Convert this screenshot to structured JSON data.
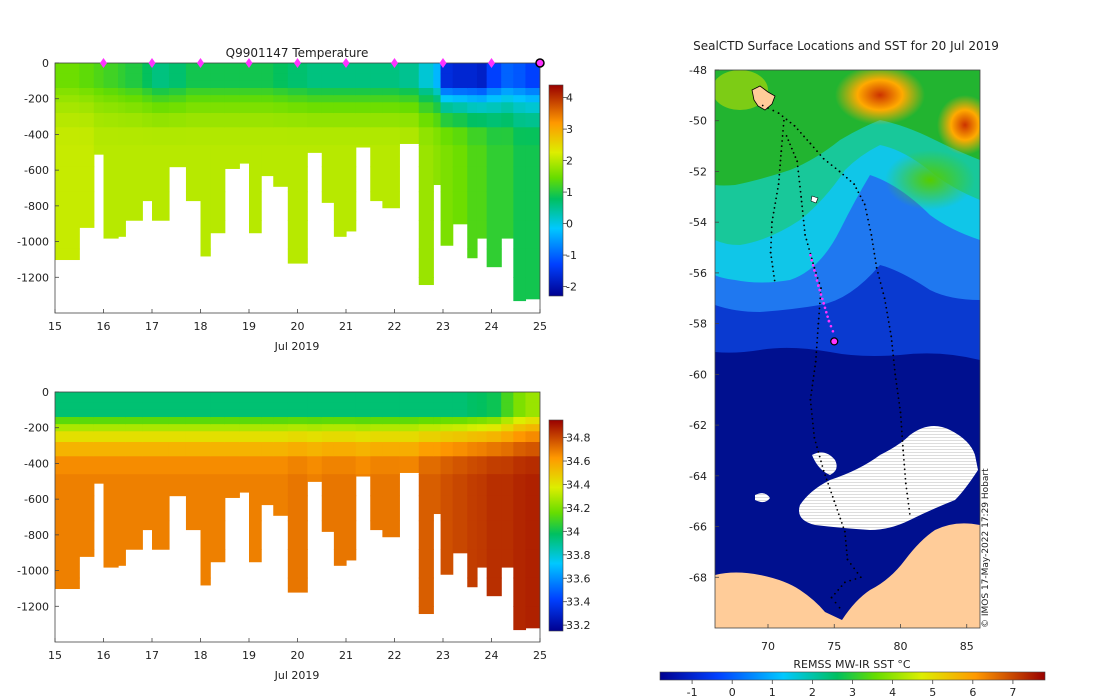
{
  "colors": {
    "seafloor_blank": "#ffffff",
    "land": "#ffcc99",
    "ice": "#ffffff",
    "profile_marker": "#ff33ff",
    "track": "#000000"
  },
  "chart_data": [
    {
      "type": "heatmap",
      "title": "Q9901147  Temperature",
      "xlabel": "Jul 2019",
      "ylabel": "",
      "x_ticks": [
        "15",
        "16",
        "17",
        "18",
        "19",
        "20",
        "21",
        "22",
        "23",
        "24",
        "25"
      ],
      "y_ticks": [
        "0",
        "-200",
        "-400",
        "-600",
        "-800",
        "-1000",
        "-1200"
      ],
      "xlim": [
        15,
        25
      ],
      "ylim": [
        -1400,
        0
      ],
      "grid": false,
      "colorbar": {
        "ticks": [
          "4",
          "3",
          "2",
          "1",
          "0",
          "-1",
          "-2"
        ],
        "range": [
          -2.3,
          4.4
        ]
      },
      "profile_marks": [
        16,
        17,
        18,
        19,
        20,
        21,
        22,
        23,
        24
      ],
      "latest_mark": 25,
      "profiles": [
        {
          "start": 15.0,
          "end": 15.5,
          "max_depth": 1100,
          "surface_temp": 1.5,
          "deep_temp": 2.1
        },
        {
          "start": 15.5,
          "end": 15.8,
          "max_depth": 920,
          "surface_temp": 1.4,
          "deep_temp": 2.1
        },
        {
          "start": 15.8,
          "end": 16.0,
          "max_depth": 510,
          "surface_temp": 1.3,
          "deep_temp": 2.0
        },
        {
          "start": 16.0,
          "end": 16.3,
          "max_depth": 980,
          "surface_temp": 1.2,
          "deep_temp": 2.0
        },
        {
          "start": 16.3,
          "end": 16.45,
          "max_depth": 970,
          "surface_temp": 1.1,
          "deep_temp": 2.0
        },
        {
          "start": 16.45,
          "end": 16.8,
          "max_depth": 880,
          "surface_temp": 1.0,
          "deep_temp": 2.0
        },
        {
          "start": 16.8,
          "end": 17.0,
          "max_depth": 770,
          "surface_temp": 0.8,
          "deep_temp": 2.0
        },
        {
          "start": 17.0,
          "end": 17.35,
          "max_depth": 880,
          "surface_temp": 0.6,
          "deep_temp": 2.0
        },
        {
          "start": 17.35,
          "end": 17.7,
          "max_depth": 580,
          "surface_temp": 0.7,
          "deep_temp": 2.0
        },
        {
          "start": 17.7,
          "end": 18.0,
          "max_depth": 770,
          "surface_temp": 0.9,
          "deep_temp": 2.0
        },
        {
          "start": 18.0,
          "end": 18.2,
          "max_depth": 1080,
          "surface_temp": 0.9,
          "deep_temp": 2.0
        },
        {
          "start": 18.2,
          "end": 18.5,
          "max_depth": 950,
          "surface_temp": 0.9,
          "deep_temp": 2.0
        },
        {
          "start": 18.5,
          "end": 18.8,
          "max_depth": 590,
          "surface_temp": 0.9,
          "deep_temp": 2.0
        },
        {
          "start": 18.8,
          "end": 19.0,
          "max_depth": 560,
          "surface_temp": 0.9,
          "deep_temp": 2.0
        },
        {
          "start": 19.0,
          "end": 19.25,
          "max_depth": 950,
          "surface_temp": 0.9,
          "deep_temp": 2.0
        },
        {
          "start": 19.25,
          "end": 19.5,
          "max_depth": 630,
          "surface_temp": 0.9,
          "deep_temp": 2.0
        },
        {
          "start": 19.5,
          "end": 19.8,
          "max_depth": 690,
          "surface_temp": 0.8,
          "deep_temp": 2.0
        },
        {
          "start": 19.8,
          "end": 20.2,
          "max_depth": 1120,
          "surface_temp": 0.7,
          "deep_temp": 2.0
        },
        {
          "start": 20.2,
          "end": 20.5,
          "max_depth": 500,
          "surface_temp": 0.6,
          "deep_temp": 2.0
        },
        {
          "start": 20.5,
          "end": 20.75,
          "max_depth": 780,
          "surface_temp": 0.6,
          "deep_temp": 2.0
        },
        {
          "start": 20.75,
          "end": 21.0,
          "max_depth": 970,
          "surface_temp": 0.6,
          "deep_temp": 2.0
        },
        {
          "start": 21.0,
          "end": 21.2,
          "max_depth": 940,
          "surface_temp": 0.6,
          "deep_temp": 2.0
        },
        {
          "start": 21.2,
          "end": 21.5,
          "max_depth": 470,
          "surface_temp": 0.6,
          "deep_temp": 2.0
        },
        {
          "start": 21.5,
          "end": 21.75,
          "max_depth": 770,
          "surface_temp": 0.6,
          "deep_temp": 2.0
        },
        {
          "start": 21.75,
          "end": 22.1,
          "max_depth": 810,
          "surface_temp": 0.6,
          "deep_temp": 2.0
        },
        {
          "start": 22.1,
          "end": 22.5,
          "max_depth": 450,
          "surface_temp": 0.5,
          "deep_temp": 2.0
        },
        {
          "start": 22.5,
          "end": 22.8,
          "max_depth": 1240,
          "surface_temp": 0.1,
          "deep_temp": 1.8
        },
        {
          "start": 22.8,
          "end": 22.95,
          "max_depth": 680,
          "surface_temp": -0.3,
          "deep_temp": 1.7
        },
        {
          "start": 22.95,
          "end": 23.2,
          "max_depth": 1020,
          "surface_temp": -1.6,
          "deep_temp": 1.6
        },
        {
          "start": 23.2,
          "end": 23.5,
          "max_depth": 900,
          "surface_temp": -1.7,
          "deep_temp": 1.5
        },
        {
          "start": 23.5,
          "end": 23.7,
          "max_depth": 1090,
          "surface_temp": -1.7,
          "deep_temp": 1.3
        },
        {
          "start": 23.7,
          "end": 23.9,
          "max_depth": 980,
          "surface_temp": -1.8,
          "deep_temp": 1.3
        },
        {
          "start": 23.9,
          "end": 24.2,
          "max_depth": 1140,
          "surface_temp": -1.3,
          "deep_temp": 1.1
        },
        {
          "start": 24.2,
          "end": 24.45,
          "max_depth": 980,
          "surface_temp": -1.0,
          "deep_temp": 1.1
        },
        {
          "start": 24.45,
          "end": 24.7,
          "max_depth": 1330,
          "surface_temp": -1.1,
          "deep_temp": 0.9
        },
        {
          "start": 24.7,
          "end": 25.05,
          "max_depth": 1320,
          "surface_temp": -1.3,
          "deep_temp": 0.9
        }
      ]
    },
    {
      "type": "heatmap",
      "title": "",
      "xlabel": "Jul 2019",
      "ylabel": "",
      "x_ticks": [
        "15",
        "16",
        "17",
        "18",
        "19",
        "20",
        "21",
        "22",
        "23",
        "24",
        "25"
      ],
      "y_ticks": [
        "0",
        "-200",
        "-400",
        "-600",
        "-800",
        "-1000",
        "-1200"
      ],
      "xlim": [
        15,
        25
      ],
      "ylim": [
        -1400,
        0
      ],
      "grid": false,
      "colorbar": {
        "ticks": [
          "34.8",
          "34.6",
          "34.4",
          "34.2",
          "34",
          "33.8",
          "33.6",
          "33.4",
          "33.2"
        ],
        "range": [
          33.15,
          34.95
        ]
      },
      "profiles": [
        {
          "start": 15.0,
          "end": 15.5,
          "max_depth": 1100,
          "surface_sal": 33.95,
          "deep_sal": 34.68
        },
        {
          "start": 15.5,
          "end": 15.8,
          "max_depth": 920,
          "surface_sal": 33.95,
          "deep_sal": 34.68
        },
        {
          "start": 15.8,
          "end": 16.0,
          "max_depth": 510,
          "surface_sal": 33.95,
          "deep_sal": 34.68
        },
        {
          "start": 16.0,
          "end": 16.3,
          "max_depth": 980,
          "surface_sal": 33.95,
          "deep_sal": 34.68
        },
        {
          "start": 16.3,
          "end": 16.45,
          "max_depth": 970,
          "surface_sal": 33.95,
          "deep_sal": 34.68
        },
        {
          "start": 16.45,
          "end": 16.8,
          "max_depth": 880,
          "surface_sal": 33.95,
          "deep_sal": 34.68
        },
        {
          "start": 16.8,
          "end": 17.0,
          "max_depth": 770,
          "surface_sal": 33.95,
          "deep_sal": 34.68
        },
        {
          "start": 17.0,
          "end": 17.35,
          "max_depth": 880,
          "surface_sal": 33.95,
          "deep_sal": 34.68
        },
        {
          "start": 17.35,
          "end": 17.7,
          "max_depth": 580,
          "surface_sal": 33.95,
          "deep_sal": 34.68
        },
        {
          "start": 17.7,
          "end": 18.0,
          "max_depth": 770,
          "surface_sal": 33.95,
          "deep_sal": 34.68
        },
        {
          "start": 18.0,
          "end": 18.2,
          "max_depth": 1080,
          "surface_sal": 33.95,
          "deep_sal": 34.68
        },
        {
          "start": 18.2,
          "end": 18.5,
          "max_depth": 950,
          "surface_sal": 33.95,
          "deep_sal": 34.68
        },
        {
          "start": 18.5,
          "end": 18.8,
          "max_depth": 590,
          "surface_sal": 33.95,
          "deep_sal": 34.68
        },
        {
          "start": 18.8,
          "end": 19.0,
          "max_depth": 560,
          "surface_sal": 33.95,
          "deep_sal": 34.68
        },
        {
          "start": 19.0,
          "end": 19.25,
          "max_depth": 950,
          "surface_sal": 33.95,
          "deep_sal": 34.68
        },
        {
          "start": 19.25,
          "end": 19.5,
          "max_depth": 630,
          "surface_sal": 33.95,
          "deep_sal": 34.68
        },
        {
          "start": 19.5,
          "end": 19.8,
          "max_depth": 690,
          "surface_sal": 33.95,
          "deep_sal": 34.68
        },
        {
          "start": 19.8,
          "end": 20.2,
          "max_depth": 1120,
          "surface_sal": 33.95,
          "deep_sal": 34.7
        },
        {
          "start": 20.2,
          "end": 20.5,
          "max_depth": 500,
          "surface_sal": 33.95,
          "deep_sal": 34.68
        },
        {
          "start": 20.5,
          "end": 20.75,
          "max_depth": 780,
          "surface_sal": 33.95,
          "deep_sal": 34.7
        },
        {
          "start": 20.75,
          "end": 21.0,
          "max_depth": 970,
          "surface_sal": 33.95,
          "deep_sal": 34.7
        },
        {
          "start": 21.0,
          "end": 21.2,
          "max_depth": 940,
          "surface_sal": 33.95,
          "deep_sal": 34.7
        },
        {
          "start": 21.2,
          "end": 21.5,
          "max_depth": 470,
          "surface_sal": 33.95,
          "deep_sal": 34.68
        },
        {
          "start": 21.5,
          "end": 21.75,
          "max_depth": 770,
          "surface_sal": 33.95,
          "deep_sal": 34.7
        },
        {
          "start": 21.75,
          "end": 22.1,
          "max_depth": 810,
          "surface_sal": 33.95,
          "deep_sal": 34.7
        },
        {
          "start": 22.1,
          "end": 22.5,
          "max_depth": 450,
          "surface_sal": 33.95,
          "deep_sal": 34.7
        },
        {
          "start": 22.5,
          "end": 22.8,
          "max_depth": 1240,
          "surface_sal": 33.95,
          "deep_sal": 34.75
        },
        {
          "start": 22.8,
          "end": 22.95,
          "max_depth": 680,
          "surface_sal": 33.95,
          "deep_sal": 34.75
        },
        {
          "start": 22.95,
          "end": 23.2,
          "max_depth": 1020,
          "surface_sal": 33.95,
          "deep_sal": 34.78
        },
        {
          "start": 23.2,
          "end": 23.5,
          "max_depth": 900,
          "surface_sal": 33.95,
          "deep_sal": 34.8
        },
        {
          "start": 23.5,
          "end": 23.7,
          "max_depth": 1090,
          "surface_sal": 33.97,
          "deep_sal": 34.82
        },
        {
          "start": 23.7,
          "end": 23.9,
          "max_depth": 980,
          "surface_sal": 33.98,
          "deep_sal": 34.83
        },
        {
          "start": 23.9,
          "end": 24.2,
          "max_depth": 1140,
          "surface_sal": 34.0,
          "deep_sal": 34.85
        },
        {
          "start": 24.2,
          "end": 24.45,
          "max_depth": 980,
          "surface_sal": 34.1,
          "deep_sal": 34.85
        },
        {
          "start": 24.45,
          "end": 24.7,
          "max_depth": 1330,
          "surface_sal": 34.2,
          "deep_sal": 34.87
        },
        {
          "start": 24.7,
          "end": 25.05,
          "max_depth": 1320,
          "surface_sal": 34.25,
          "deep_sal": 34.88
        }
      ]
    },
    {
      "type": "heatmap",
      "title": "SealCTD Surface Locations and SST for 20 Jul 2019",
      "xlabel": "REMSS MW-IR SST °C",
      "ylabel": "",
      "x_ticks": [
        "70",
        "75",
        "80",
        "85"
      ],
      "y_ticks": [
        "-48",
        "-50",
        "-52",
        "-54",
        "-56",
        "-58",
        "-60",
        "-62",
        "-64",
        "-66",
        "-68"
      ],
      "xlim": [
        66,
        86
      ],
      "ylim": [
        -70,
        -48
      ],
      "grid": false,
      "colorbar": {
        "ticks": [
          "-1",
          "0",
          "1",
          "2",
          "3",
          "4",
          "5",
          "6",
          "7"
        ],
        "range": [
          -1.8,
          7.8
        ]
      },
      "credit": "© IMOS 17-May-2022 17:29 Hobart",
      "track_points": [
        [
          69.6,
          -49.4
        ],
        [
          70.8,
          -49.7
        ],
        [
          72.0,
          -50.2
        ],
        [
          73.2,
          -50.9
        ],
        [
          74.2,
          -51.5
        ],
        [
          75.4,
          -52.0
        ],
        [
          76.5,
          -52.5
        ],
        [
          77.3,
          -53.3
        ],
        [
          77.8,
          -54.5
        ],
        [
          78.2,
          -55.8
        ],
        [
          78.8,
          -57.0
        ],
        [
          79.3,
          -58.5
        ],
        [
          79.6,
          -60.0
        ],
        [
          80.0,
          -61.5
        ],
        [
          80.2,
          -63.0
        ],
        [
          80.4,
          -64.3
        ],
        [
          80.7,
          -65.5
        ],
        [
          71.2,
          -50.0
        ],
        [
          71.0,
          -51.2
        ],
        [
          70.8,
          -52.5
        ],
        [
          70.3,
          -54.0
        ],
        [
          70.2,
          -55.2
        ],
        [
          70.5,
          -56.3
        ],
        [
          71.4,
          -50.6
        ],
        [
          72.2,
          -51.6
        ],
        [
          72.5,
          -53.0
        ],
        [
          72.8,
          -54.5
        ],
        [
          73.5,
          -55.8
        ],
        [
          74.0,
          -56.6
        ],
        [
          73.8,
          -58.0
        ],
        [
          73.6,
          -59.5
        ],
        [
          73.2,
          -61.0
        ],
        [
          73.5,
          -62.5
        ],
        [
          74.2,
          -63.8
        ],
        [
          75.0,
          -65.0
        ],
        [
          75.8,
          -66.2
        ],
        [
          76.0,
          -67.3
        ],
        [
          77.0,
          -68.0
        ],
        [
          75.8,
          -68.2
        ],
        [
          74.8,
          -68.8
        ],
        [
          75.4,
          -69.2
        ]
      ],
      "highlight_track": [
        [
          73.2,
          -55.3
        ],
        [
          73.5,
          -55.9
        ],
        [
          73.8,
          -56.5
        ],
        [
          74.2,
          -57.2
        ],
        [
          74.6,
          -57.9
        ],
        [
          74.9,
          -58.3
        ]
      ],
      "current_position": [
        75.0,
        -58.7
      ]
    }
  ]
}
